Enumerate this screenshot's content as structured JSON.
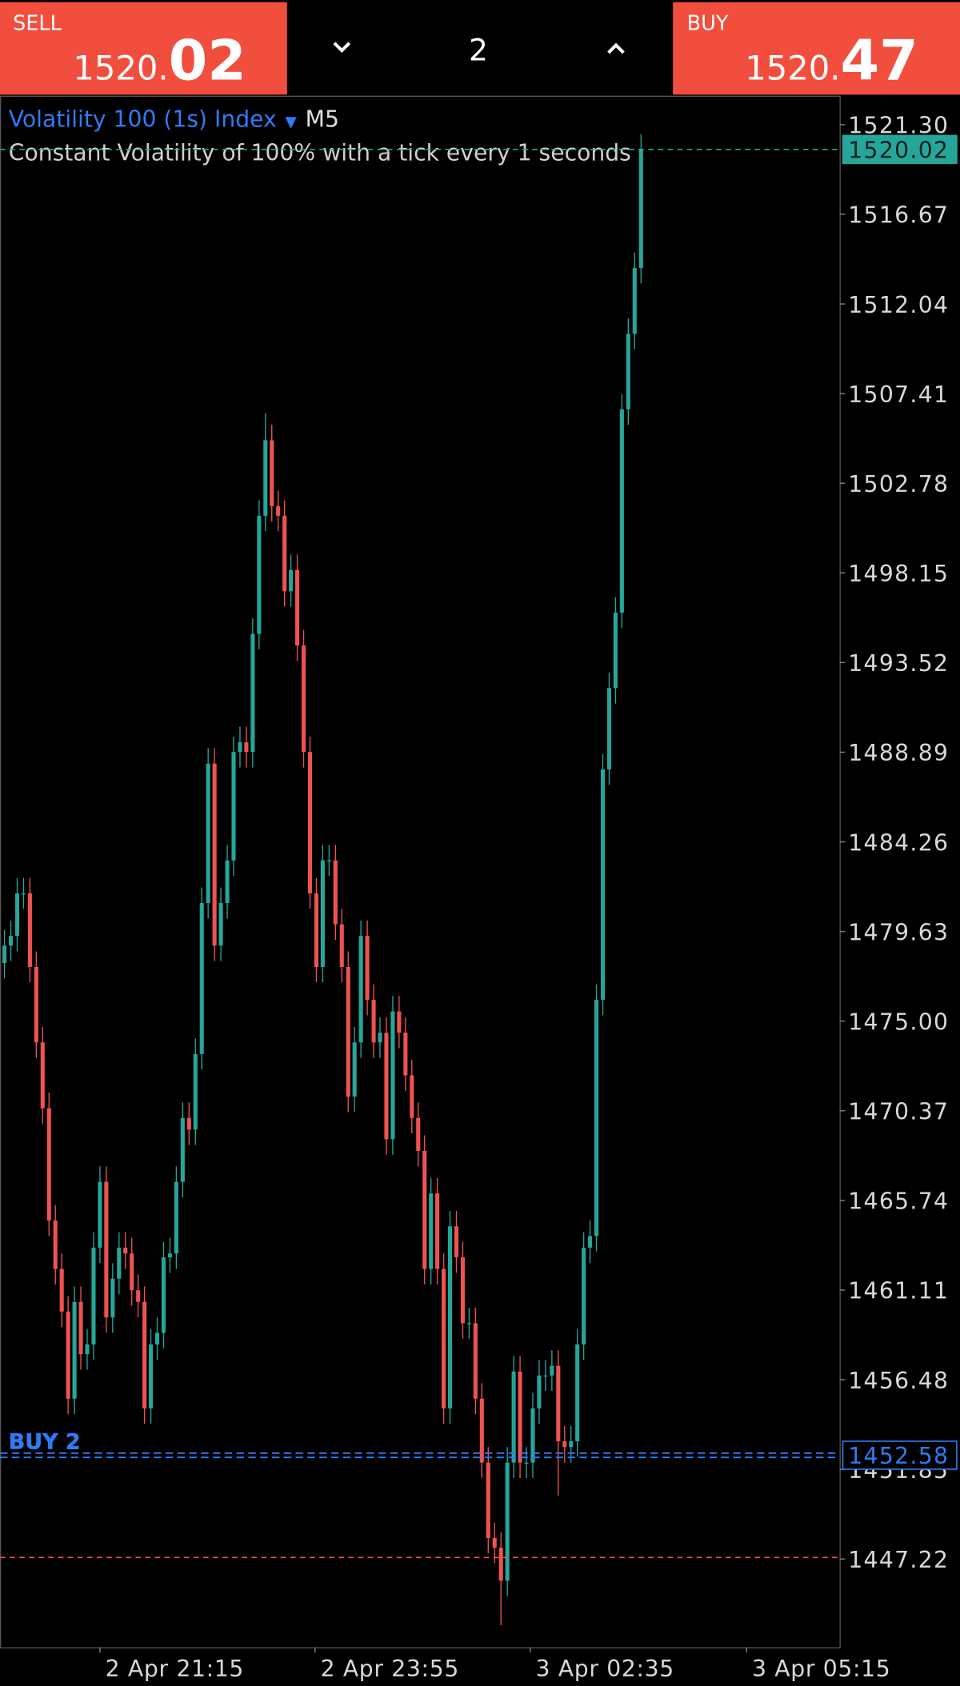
{
  "header": {
    "sell": {
      "label": "SELL",
      "price_main": "1520.",
      "price_big": "02"
    },
    "volume": "2",
    "buy": {
      "label": "BUY",
      "price_main": "1520.",
      "price_big": "47"
    }
  },
  "chart_data": {
    "type": "candlestick",
    "title": "Volatility 100 (1s) Index",
    "timeframe": "M5",
    "subtitle": "Constant Volatility of 100% with a tick every 1 seconds",
    "up_color": "#26a69a",
    "down_color": "#ef5350",
    "open": [
      1478.0,
      1478.9,
      1479.4,
      1481.6,
      1481.6,
      1477.8,
      1473.9,
      1470.5,
      1464.7,
      1462.2,
      1460.0,
      1455.5,
      1460.5,
      1457.8,
      1458.3,
      1463.3,
      1466.7,
      1459.7,
      1461.7,
      1463.3,
      1463.0,
      1461.1,
      1460.5,
      1455.0,
      1458.3,
      1458.9,
      1462.8,
      1463.0,
      1466.7,
      1470.0,
      1469.4,
      1473.3,
      1481.1,
      1488.3,
      1478.9,
      1481.1,
      1483.3,
      1488.9,
      1489.4,
      1488.9,
      1495.0,
      1501.1,
      1505.0,
      1501.6,
      1501.1,
      1497.2,
      1498.3,
      1494.4,
      1488.9,
      1481.6,
      1477.8,
      1483.3,
      1483.3,
      1480.0,
      1477.8,
      1471.1,
      1473.9,
      1479.4,
      1476.1,
      1473.9,
      1474.4,
      1468.9,
      1475.5,
      1474.4,
      1472.2,
      1470.0,
      1468.3,
      1462.2,
      1466.1,
      1462.2,
      1455.0,
      1464.4,
      1462.8,
      1459.4,
      1459.4,
      1455.5,
      1452.2,
      1448.3,
      1447.8,
      1446.1,
      1452.2,
      1456.9,
      1452.2,
      1452.2,
      1455.0,
      1456.7,
      1456.7,
      1457.2,
      1453.3,
      1453.0,
      1453.3,
      1458.3,
      1463.3,
      1463.9,
      1476.1,
      1488.0,
      1492.2,
      1496.1,
      1506.6,
      1510.5,
      1513.9
    ],
    "high": [
      1479.7,
      1480.2,
      1482.4,
      1482.4,
      1482.4,
      1478.6,
      1474.7,
      1471.3,
      1465.5,
      1463.0,
      1460.8,
      1461.3,
      1461.3,
      1459.1,
      1464.1,
      1467.5,
      1467.5,
      1462.5,
      1464.1,
      1464.1,
      1463.8,
      1461.9,
      1461.3,
      1459.1,
      1459.7,
      1463.6,
      1463.8,
      1467.5,
      1470.8,
      1470.8,
      1474.1,
      1481.9,
      1489.1,
      1489.1,
      1481.9,
      1484.1,
      1489.7,
      1490.2,
      1490.2,
      1495.8,
      1501.9,
      1506.4,
      1505.8,
      1502.4,
      1501.9,
      1499.1,
      1499.1,
      1495.2,
      1489.7,
      1482.4,
      1484.1,
      1484.1,
      1484.1,
      1480.8,
      1478.6,
      1474.7,
      1480.2,
      1480.2,
      1476.9,
      1475.2,
      1475.2,
      1476.3,
      1476.3,
      1475.2,
      1473.0,
      1470.8,
      1469.1,
      1466.9,
      1466.9,
      1463.0,
      1465.2,
      1465.2,
      1463.6,
      1460.2,
      1460.2,
      1456.3,
      1453.0,
      1449.1,
      1448.6,
      1453.0,
      1457.7,
      1457.7,
      1453.0,
      1455.8,
      1457.5,
      1457.5,
      1458.0,
      1458.0,
      1454.1,
      1454.1,
      1459.1,
      1464.1,
      1464.7,
      1476.9,
      1488.8,
      1493.0,
      1496.9,
      1507.4,
      1511.3,
      1514.7,
      1520.8
    ],
    "low": [
      1477.2,
      1478.1,
      1478.6,
      1480.8,
      1477.0,
      1473.1,
      1469.7,
      1463.9,
      1461.4,
      1459.2,
      1454.7,
      1454.7,
      1457.0,
      1457.0,
      1457.5,
      1462.5,
      1458.9,
      1458.9,
      1460.9,
      1462.2,
      1460.3,
      1459.7,
      1454.2,
      1454.2,
      1457.5,
      1458.1,
      1462.0,
      1462.2,
      1465.9,
      1468.6,
      1468.6,
      1472.5,
      1480.3,
      1478.1,
      1478.1,
      1480.3,
      1482.5,
      1488.1,
      1488.1,
      1488.1,
      1494.2,
      1500.3,
      1500.8,
      1500.3,
      1496.4,
      1496.4,
      1493.6,
      1488.1,
      1480.8,
      1477.0,
      1477.0,
      1482.5,
      1479.2,
      1477.0,
      1470.3,
      1470.3,
      1473.1,
      1475.3,
      1473.1,
      1473.1,
      1468.1,
      1468.1,
      1473.6,
      1471.4,
      1469.2,
      1467.5,
      1461.4,
      1461.4,
      1461.4,
      1454.2,
      1454.2,
      1462.0,
      1458.6,
      1458.6,
      1454.7,
      1451.4,
      1447.5,
      1447.0,
      1443.8,
      1445.3,
      1451.4,
      1451.4,
      1451.4,
      1451.4,
      1454.2,
      1455.9,
      1455.9,
      1450.5,
      1452.2,
      1452.2,
      1452.5,
      1457.5,
      1462.5,
      1463.1,
      1475.3,
      1487.2,
      1491.4,
      1495.3,
      1505.8,
      1509.7,
      1513.1
    ],
    "close": [
      1478.9,
      1479.4,
      1481.6,
      1481.6,
      1477.8,
      1473.9,
      1470.5,
      1464.7,
      1462.2,
      1460.0,
      1455.5,
      1460.5,
      1457.8,
      1458.3,
      1463.3,
      1466.7,
      1459.7,
      1461.7,
      1463.3,
      1463.0,
      1461.1,
      1460.5,
      1455.0,
      1458.3,
      1458.9,
      1462.8,
      1463.0,
      1466.7,
      1470.0,
      1469.4,
      1473.3,
      1481.1,
      1488.3,
      1478.9,
      1481.1,
      1483.3,
      1488.9,
      1489.4,
      1488.9,
      1495.0,
      1501.1,
      1505.0,
      1501.6,
      1501.1,
      1497.2,
      1498.3,
      1494.4,
      1488.9,
      1481.6,
      1477.8,
      1483.3,
      1483.3,
      1480.0,
      1477.8,
      1471.1,
      1473.9,
      1479.4,
      1476.1,
      1473.9,
      1474.4,
      1468.9,
      1475.5,
      1474.4,
      1472.2,
      1470.0,
      1468.3,
      1462.2,
      1466.1,
      1462.2,
      1455.0,
      1464.4,
      1462.8,
      1459.4,
      1459.4,
      1455.5,
      1452.2,
      1448.3,
      1447.8,
      1446.1,
      1452.2,
      1456.9,
      1452.2,
      1452.2,
      1455.0,
      1456.7,
      1456.7,
      1457.2,
      1453.3,
      1453.0,
      1453.3,
      1458.3,
      1463.3,
      1463.9,
      1476.1,
      1488.0,
      1492.2,
      1496.1,
      1506.6,
      1510.5,
      1513.9,
      1520.02
    ],
    "xlim": [
      -0.7,
      131.2
    ],
    "xticks": [
      {
        "value": 15.0,
        "label": "2 Apr 21:15"
      },
      {
        "value": 48.8,
        "label": "2 Apr 23:55"
      },
      {
        "value": 82.6,
        "label": "3 Apr 02:35"
      },
      {
        "value": 116.6,
        "label": "3 Apr 05:15"
      }
    ],
    "ylim": [
      1442.66,
      1522.74
    ],
    "yticks": [
      {
        "value": 1521.3,
        "label": "1521.30"
      },
      {
        "value": 1516.67,
        "label": "1516.67"
      },
      {
        "value": 1512.04,
        "label": "1512.04"
      },
      {
        "value": 1507.41,
        "label": "1507.41"
      },
      {
        "value": 1502.78,
        "label": "1502.78"
      },
      {
        "value": 1498.15,
        "label": "1498.15"
      },
      {
        "value": 1493.52,
        "label": "1493.52"
      },
      {
        "value": 1488.89,
        "label": "1488.89"
      },
      {
        "value": 1484.26,
        "label": "1484.26"
      },
      {
        "value": 1479.63,
        "label": "1479.63"
      },
      {
        "value": 1475.0,
        "label": "1475.00"
      },
      {
        "value": 1470.37,
        "label": "1470.37"
      },
      {
        "value": 1465.74,
        "label": "1465.74"
      },
      {
        "value": 1461.11,
        "label": "1461.11"
      },
      {
        "value": 1456.48,
        "label": "1456.48"
      },
      {
        "value": 1451.85,
        "label": "1451.85"
      },
      {
        "value": 1447.22,
        "label": "1447.22"
      }
    ],
    "price_lines": [
      {
        "value": 1520.02,
        "label": "1520.02",
        "color": "#26a69a"
      },
      {
        "value": 1452.58,
        "label": "1452.58",
        "name": "BUY 2",
        "color": "#2f7bf5"
      },
      {
        "value": 1447.3,
        "color": "#ef5350"
      }
    ]
  }
}
